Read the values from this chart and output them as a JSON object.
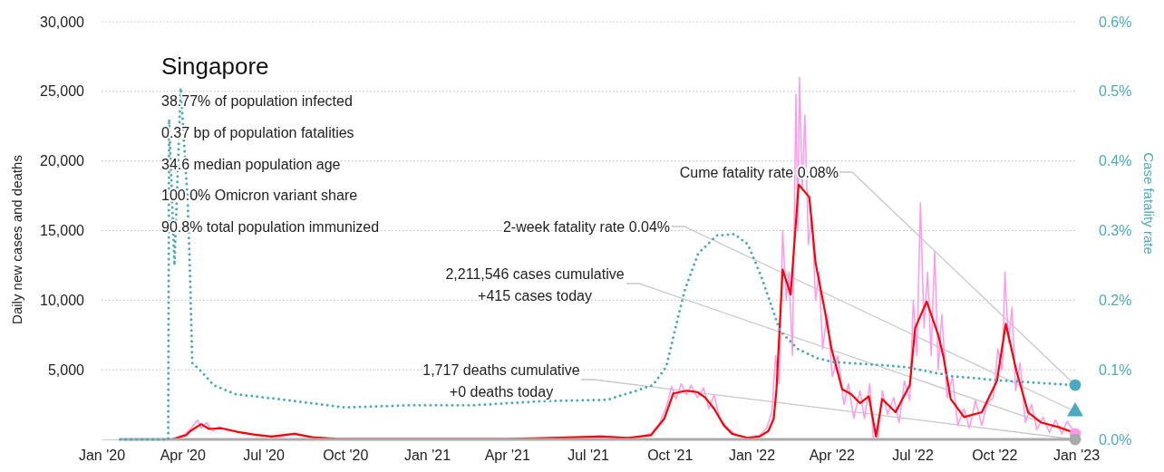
{
  "chart_data": {
    "type": "line",
    "title": "Singapore",
    "ylabel": "Daily new cases and deaths",
    "y2label": "Case fatality rate",
    "annotations": [
      "38.77% of population infected",
      "0.37 bp of population fatalities",
      "34.6 median population age",
      "100.0% Omicron variant share",
      "90.8% total population immunized",
      {
        "text": "Cume fatality rate 0.08%",
        "x": "2022-12-31",
        "y": 3900
      },
      {
        "text": "2-week fatality rate 0.04%",
        "x": "2022-12-31",
        "y": 2000
      },
      {
        "text": "2,211,546 cases cumulative\n+415 cases today",
        "x": "2022-12-31",
        "y": 400
      },
      {
        "text": "1,717 deaths cumulative\n+0 deaths today",
        "x": "2022-12-31",
        "y": 0
      }
    ],
    "xlim": [
      "2020-01-01",
      "2023-01-01"
    ],
    "xticks": [
      {
        "value": "2020-01-01",
        "label": "Jan '20"
      },
      {
        "value": "2020-04-01",
        "label": "Apr '20"
      },
      {
        "value": "2020-07-01",
        "label": "Jul '20"
      },
      {
        "value": "2020-10-01",
        "label": "Oct '20"
      },
      {
        "value": "2021-01-01",
        "label": "Jan '21"
      },
      {
        "value": "2021-04-01",
        "label": "Apr '21"
      },
      {
        "value": "2021-07-01",
        "label": "Jul '21"
      },
      {
        "value": "2021-10-01",
        "label": "Oct '21"
      },
      {
        "value": "2022-01-01",
        "label": "Jan '22"
      },
      {
        "value": "2022-04-01",
        "label": "Apr '22"
      },
      {
        "value": "2022-07-01",
        "label": "Jul '22"
      },
      {
        "value": "2022-10-01",
        "label": "Oct '22"
      },
      {
        "value": "2023-01-01",
        "label": "Jan '23"
      }
    ],
    "ylim": [
      0,
      30000
    ],
    "yticks": [
      {
        "value": 5000,
        "label": "5,000"
      },
      {
        "value": 10000,
        "label": "10,000"
      },
      {
        "value": 15000,
        "label": "15,000"
      },
      {
        "value": 20000,
        "label": "20,000"
      },
      {
        "value": 25000,
        "label": "25,000"
      },
      {
        "value": 30000,
        "label": "30,000"
      }
    ],
    "y2lim": [
      0,
      0.6
    ],
    "y2ticks": [
      {
        "value": 0,
        "label": "0.0%"
      },
      {
        "value": 0.1,
        "label": "0.1%"
      },
      {
        "value": 0.2,
        "label": "0.2%"
      },
      {
        "value": 0.3,
        "label": "0.3%"
      },
      {
        "value": 0.4,
        "label": "0.4%"
      },
      {
        "value": 0.5,
        "label": "0.5%"
      },
      {
        "value": 0.6,
        "label": "0.6%"
      }
    ],
    "grid": "y",
    "series": [
      {
        "color": "#ff99ee",
        "x": [
          "2020-01-22",
          "2020-03-20",
          "2020-04-05",
          "2020-04-12",
          "2020-04-18",
          "2020-04-22",
          "2020-04-28",
          "2020-05-05",
          "2020-05-12",
          "2020-05-20",
          "2020-06-01",
          "2020-06-15",
          "2020-07-01",
          "2020-07-20",
          "2020-08-05",
          "2020-08-20",
          "2020-09-15",
          "2021-06-01",
          "2021-07-15",
          "2021-08-20",
          "2021-09-10",
          "2021-09-20",
          "2021-09-28",
          "2021-10-03",
          "2021-10-08",
          "2021-10-14",
          "2021-10-20",
          "2021-10-25",
          "2021-11-01",
          "2021-11-08",
          "2021-11-14",
          "2021-11-20",
          "2021-11-26",
          "2021-12-05",
          "2021-12-15",
          "2021-12-28",
          "2022-01-10",
          "2022-01-18",
          "2022-01-24",
          "2022-01-28",
          "2022-02-01",
          "2022-02-05",
          "2022-02-09",
          "2022-02-12",
          "2022-02-16",
          "2022-02-20",
          "2022-02-22",
          "2022-02-24",
          "2022-02-27",
          "2022-03-02",
          "2022-03-06",
          "2022-03-10",
          "2022-03-14",
          "2022-03-18",
          "2022-03-22",
          "2022-03-27",
          "2022-04-02",
          "2022-04-08",
          "2022-04-15",
          "2022-04-20",
          "2022-04-26",
          "2022-05-03",
          "2022-05-08",
          "2022-05-14",
          "2022-05-18",
          "2022-05-23",
          "2022-05-28",
          "2022-06-03",
          "2022-06-10",
          "2022-06-16",
          "2022-06-22",
          "2022-06-28",
          "2022-07-02",
          "2022-07-06",
          "2022-07-10",
          "2022-07-14",
          "2022-07-18",
          "2022-07-22",
          "2022-07-26",
          "2022-07-30",
          "2022-08-03",
          "2022-08-09",
          "2022-08-15",
          "2022-08-21",
          "2022-08-28",
          "2022-09-03",
          "2022-09-10",
          "2022-09-17",
          "2022-09-23",
          "2022-09-30",
          "2022-10-05",
          "2022-10-10",
          "2022-10-13",
          "2022-10-17",
          "2022-10-21",
          "2022-10-25",
          "2022-10-30",
          "2022-11-05",
          "2022-11-12",
          "2022-11-18",
          "2022-11-25",
          "2022-12-02",
          "2022-12-09",
          "2022-12-16",
          "2022-12-22",
          "2022-12-31"
        ],
        "values": [
          0,
          0,
          400,
          900,
          1400,
          800,
          1200,
          600,
          900,
          700,
          550,
          400,
          250,
          200,
          450,
          200,
          50,
          20,
          250,
          80,
          400,
          1200,
          2500,
          3800,
          2900,
          4000,
          3200,
          3900,
          3000,
          3700,
          2200,
          3200,
          1500,
          800,
          300,
          150,
          300,
          800,
          2000,
          6000,
          4000,
          15000,
          10000,
          12000,
          6000,
          24800,
          15000,
          26000,
          18000,
          23300,
          14000,
          16000,
          10000,
          12000,
          6500,
          9000,
          4500,
          6000,
          2500,
          4000,
          1500,
          3500,
          1500,
          4000,
          0,
          0,
          3500,
          1800,
          3000,
          1200,
          4200,
          2800,
          10000,
          6000,
          17000,
          8000,
          12000,
          6000,
          13500,
          5000,
          9000,
          3000,
          4500,
          1000,
          2200,
          800,
          2800,
          1000,
          2600,
          3000,
          6500,
          5000,
          12000,
          7000,
          9500,
          3500,
          5500,
          1200,
          2500,
          700,
          1600,
          500,
          1400,
          400,
          1300,
          400
        ]
      },
      {
        "color": "#ff0000",
        "x": [
          "2020-01-22",
          "2020-03-20",
          "2020-04-05",
          "2020-04-10",
          "2020-04-22",
          "2020-05-01",
          "2020-05-15",
          "2020-06-01",
          "2020-06-20",
          "2020-07-10",
          "2020-08-05",
          "2020-08-25",
          "2020-09-20",
          "2020-12-01",
          "2021-04-01",
          "2021-07-15",
          "2021-08-15",
          "2021-09-10",
          "2021-09-25",
          "2021-10-05",
          "2021-10-20",
          "2021-11-01",
          "2021-11-10",
          "2021-11-20",
          "2021-12-01",
          "2021-12-10",
          "2021-12-28",
          "2022-01-10",
          "2022-01-20",
          "2022-01-26",
          "2022-01-29",
          "2022-02-05",
          "2022-02-14",
          "2022-02-23",
          "2022-03-07",
          "2022-03-14",
          "2022-03-24",
          "2022-04-01",
          "2022-04-13",
          "2022-04-23",
          "2022-05-03",
          "2022-05-13",
          "2022-05-21",
          "2022-05-28",
          "2022-06-12",
          "2022-06-28",
          "2022-07-04",
          "2022-07-17",
          "2022-07-30",
          "2022-08-05",
          "2022-08-13",
          "2022-08-28",
          "2022-09-17",
          "2022-10-04",
          "2022-10-14",
          "2022-10-26",
          "2022-11-08",
          "2022-11-23",
          "2022-12-14",
          "2022-12-31"
        ],
        "values": [
          0,
          0,
          300,
          600,
          1100,
          750,
          800,
          550,
          350,
          200,
          400,
          150,
          50,
          20,
          20,
          200,
          100,
          300,
          1500,
          3300,
          3500,
          3400,
          3000,
          2200,
          1000,
          400,
          100,
          200,
          600,
          1500,
          3500,
          12200,
          10400,
          18300,
          17400,
          12700,
          9400,
          6500,
          3600,
          3250,
          2600,
          3100,
          200,
          2900,
          1950,
          3900,
          8000,
          9900,
          7500,
          5900,
          2900,
          1600,
          1950,
          4200,
          8300,
          4900,
          1950,
          1200,
          850,
          450
        ]
      },
      {
        "color": "#aaaaaa",
        "x": [
          "2020-01-22",
          "2022-12-31"
        ],
        "values": [
          0,
          0
        ]
      },
      {
        "color": "#4aaabf",
        "axis": "y2",
        "line_style": "dotted",
        "x": [
          "2020-01-22",
          "2020-03-16",
          "2020-03-17",
          "2020-03-23",
          "2020-03-30",
          "2020-04-07",
          "2020-04-10",
          "2020-04-12",
          "2020-04-22",
          "2020-05-06",
          "2020-05-31",
          "2020-07-11",
          "2020-10-01",
          "2020-12-11",
          "2021-02-20",
          "2021-05-12",
          "2021-07-23",
          "2021-08-22",
          "2021-09-12",
          "2021-09-27",
          "2021-10-08",
          "2021-10-18",
          "2021-11-02",
          "2021-11-23",
          "2021-12-13",
          "2021-12-28",
          "2022-01-12",
          "2022-02-02",
          "2022-02-22",
          "2022-03-15",
          "2022-04-04",
          "2022-05-14",
          "2022-06-24",
          "2022-08-14",
          "2022-10-05",
          "2022-12-31"
        ],
        "values": [
          0,
          0,
          0.46,
          0.25,
          0.505,
          0.34,
          0.215,
          0.11,
          0.098,
          0.078,
          0.065,
          0.059,
          0.046,
          0.049,
          0.049,
          0.055,
          0.057,
          0.069,
          0.078,
          0.104,
          0.163,
          0.215,
          0.267,
          0.293,
          0.295,
          0.28,
          0.234,
          0.156,
          0.13,
          0.117,
          0.111,
          0.108,
          0.104,
          0.091,
          0.085,
          0.078
        ]
      },
      {
        "type": "scatter",
        "color": "#4aaabf",
        "axis": "y2",
        "marker": "triangle",
        "x": [
          "2022-12-31"
        ],
        "values": [
          0.04
        ]
      },
      {
        "type": "scatter",
        "color": "#4aaabf",
        "axis": "y2",
        "marker": "circle",
        "x": [
          "2022-12-31"
        ],
        "values": [
          0.078
        ]
      },
      {
        "type": "scatter",
        "color": "#ff99ee",
        "marker": "circle",
        "x": [
          "2022-12-31"
        ],
        "values": [
          400
        ]
      },
      {
        "type": "scatter",
        "color": "#aaaaaa",
        "marker": "circle",
        "x": [
          "2022-12-31"
        ],
        "values": [
          0
        ]
      }
    ]
  }
}
